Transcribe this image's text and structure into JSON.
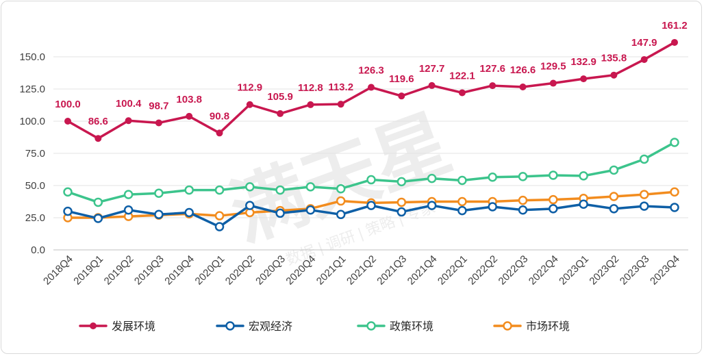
{
  "chart_data": {
    "type": "line",
    "categories": [
      "2018Q4",
      "2019Q1",
      "2019Q2",
      "2019Q3",
      "2019Q4",
      "2020Q1",
      "2020Q2",
      "2020Q3",
      "2020Q4",
      "2021Q1",
      "2021Q2",
      "2021Q3",
      "2021Q4",
      "2022Q1",
      "2022Q2",
      "2022Q3",
      "2022Q4",
      "2023Q1",
      "2023Q2",
      "2023Q3",
      "2023Q4"
    ],
    "ylim": [
      0,
      175
    ],
    "yticks": [
      "0.0",
      "25.0",
      "50.0",
      "75.0",
      "100.0",
      "125.0",
      "150.0"
    ],
    "grid": "horizontal",
    "legend": "bottom",
    "series": [
      {
        "name": "发展环境",
        "color": "#c8174f",
        "values": [
          100.0,
          86.6,
          100.4,
          98.7,
          103.8,
          90.8,
          112.9,
          105.9,
          112.8,
          113.2,
          126.3,
          119.6,
          127.7,
          122.1,
          127.6,
          126.6,
          129.5,
          132.9,
          135.8,
          147.9,
          161.2
        ],
        "labels": [
          "100.0",
          "86.6",
          "100.4",
          "98.7",
          "103.8",
          "90.8",
          "112.9",
          "105.9",
          "112.8",
          "113.2",
          "126.3",
          "119.6",
          "127.7",
          "122.1",
          "127.6",
          "126.6",
          "129.5",
          "132.9",
          "135.8",
          "147.9",
          "161.2"
        ]
      },
      {
        "name": "宏观经济",
        "color": "#0e5fa6",
        "values": [
          30,
          24.5,
          31,
          27.5,
          29,
          18,
          34.5,
          28.5,
          31,
          27.5,
          34.5,
          29.5,
          34.5,
          30.5,
          33.5,
          31,
          32,
          35.5,
          32,
          34,
          33
        ]
      },
      {
        "name": "政策环境",
        "color": "#3cc48c",
        "values": [
          45,
          37,
          43,
          44,
          46.5,
          46.5,
          49,
          46.5,
          49,
          47.5,
          54.5,
          53,
          55.5,
          54,
          56.5,
          57,
          58,
          57.5,
          62,
          70.5,
          83.5
        ]
      },
      {
        "name": "市场环境",
        "color": "#f28c1e",
        "values": [
          25,
          25,
          26,
          27,
          28,
          26.5,
          29,
          30.5,
          32,
          38,
          36.5,
          37,
          37.5,
          37.5,
          37.5,
          38.5,
          39,
          40,
          41.5,
          43,
          45
        ]
      }
    ]
  },
  "watermark": {
    "main": "满天星",
    "sub": "数据 | 调研 | 策略 | 专家"
  }
}
